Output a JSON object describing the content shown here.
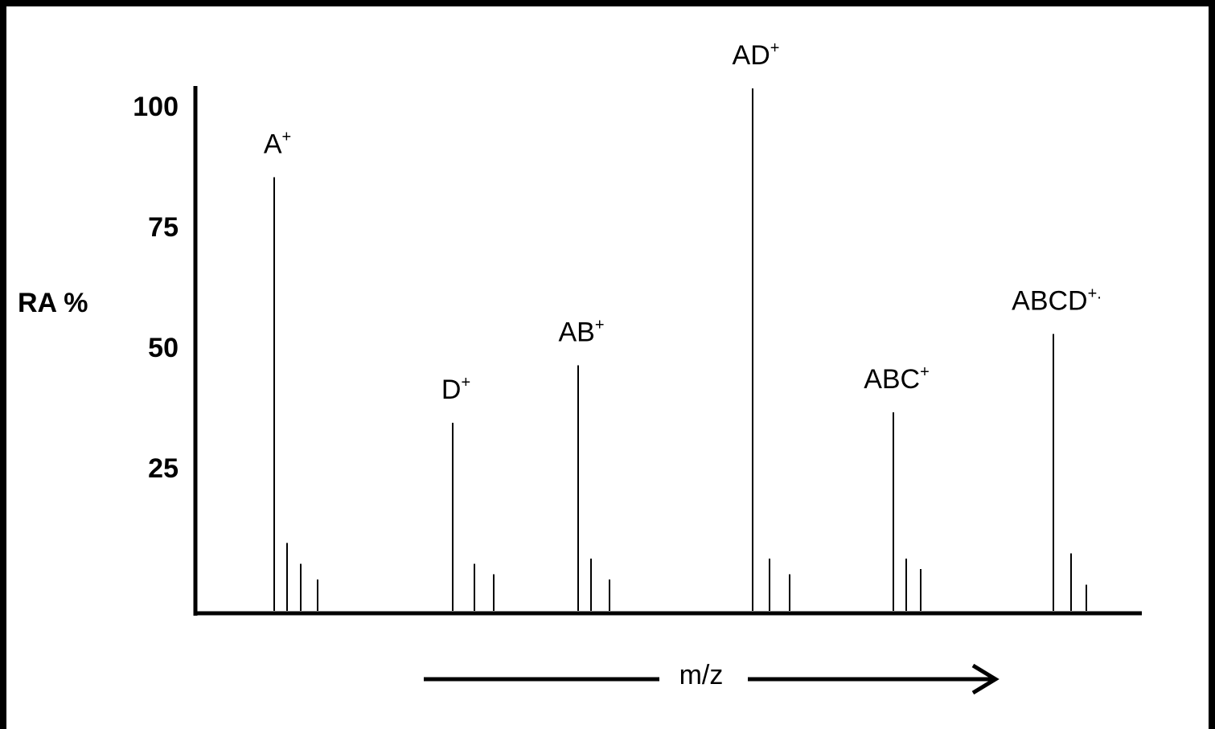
{
  "chart_data": {
    "type": "bar",
    "title": "",
    "ylabel": "RA %",
    "xlabel": "m/z",
    "ylim": [
      0,
      100
    ],
    "yticks": [
      "100",
      "75",
      "50",
      "25"
    ],
    "grid": false,
    "legend": "none",
    "colors": {
      "background": "#ffffff",
      "frame": "#000000",
      "ink": "#000000"
    },
    "peaks": [
      {
        "name": "A",
        "label": "A",
        "sup": "+",
        "values": [
          83,
          13,
          9,
          6
        ]
      },
      {
        "name": "D",
        "label": "D",
        "sup": "+",
        "values": [
          36,
          9,
          7
        ]
      },
      {
        "name": "AB",
        "label": "AB",
        "sup": "+",
        "values": [
          47,
          10,
          6
        ]
      },
      {
        "name": "AD",
        "label": "AD",
        "sup": "+",
        "values": [
          100,
          10,
          7
        ]
      },
      {
        "name": "ABC",
        "label": "ABC",
        "sup": "+",
        "values": [
          38,
          10,
          8
        ]
      },
      {
        "name": "ABCD",
        "label": "ABCD",
        "sup": "+.",
        "values": [
          53,
          11,
          5
        ]
      }
    ]
  }
}
